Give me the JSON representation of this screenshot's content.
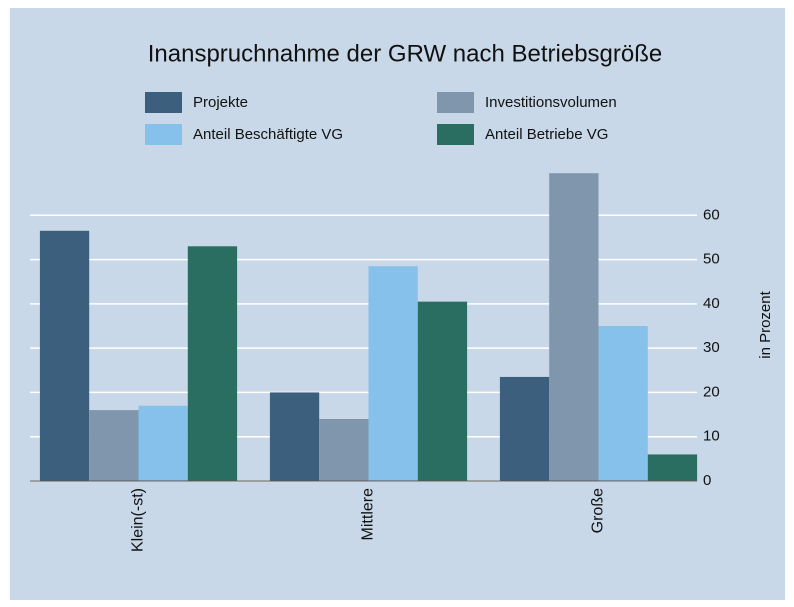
{
  "chart_data": {
    "type": "bar",
    "title": "Inanspruchnahme der GRW nach Betriebsgröße",
    "categories": [
      "Klein(-st)",
      "Mittlere",
      "Große"
    ],
    "series": [
      {
        "name": "Projekte",
        "color": "#3b5f7d",
        "values": [
          56.5,
          20,
          23.5
        ]
      },
      {
        "name": "Investitionsvolumen",
        "color": "#7f96ad",
        "values": [
          16,
          14,
          69.5
        ]
      },
      {
        "name": "Anteil Beschäftigte VG",
        "color": "#85c1ea",
        "values": [
          17,
          48.5,
          35
        ]
      },
      {
        "name": "Anteil Betriebe VG",
        "color": "#2a6e62",
        "values": [
          53,
          40.5,
          6
        ]
      }
    ],
    "y_label": "in Prozent",
    "ylim": [
      0,
      70
    ],
    "yticks": [
      0,
      10,
      20,
      30,
      40,
      50,
      60
    ],
    "grid": true,
    "y_axis_side": "right"
  }
}
